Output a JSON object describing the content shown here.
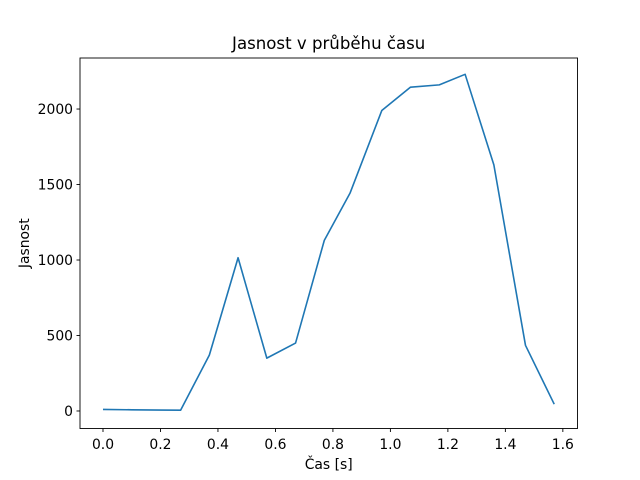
{
  "figure": {
    "background": "#ffffff"
  },
  "chart_data": {
    "type": "line",
    "title": "Jasnost v průběhu času",
    "xlabel": "Čas [s]",
    "ylabel": "Jasnost",
    "series": [
      {
        "name": "jasnost",
        "color": "#1f77b4",
        "x": [
          0.0,
          0.1,
          0.2,
          0.27,
          0.37,
          0.47,
          0.57,
          0.67,
          0.77,
          0.86,
          0.97,
          1.07,
          1.17,
          1.26,
          1.36,
          1.47,
          1.57
        ],
        "y": [
          10,
          8,
          6,
          5,
          370,
          1015,
          350,
          450,
          1130,
          1445,
          1990,
          2145,
          2160,
          2230,
          1630,
          435,
          45
        ]
      }
    ],
    "xlim": [
      -0.08,
      1.651
    ],
    "ylim": [
      -116,
      2338
    ],
    "xticks": {
      "values": [
        0.0,
        0.2,
        0.4,
        0.6,
        0.8,
        1.0,
        1.2,
        1.4,
        1.6
      ],
      "labels": [
        "0.0",
        "0.2",
        "0.4",
        "0.6",
        "0.8",
        "1.0",
        "1.2",
        "1.4",
        "1.6"
      ]
    },
    "yticks": {
      "values": [
        0,
        500,
        1000,
        1500,
        2000
      ],
      "labels": [
        "0",
        "500",
        "1000",
        "1500",
        "2000"
      ]
    },
    "grid": false,
    "legend": false,
    "axis_color": "#000000",
    "text_color": "#000000"
  }
}
